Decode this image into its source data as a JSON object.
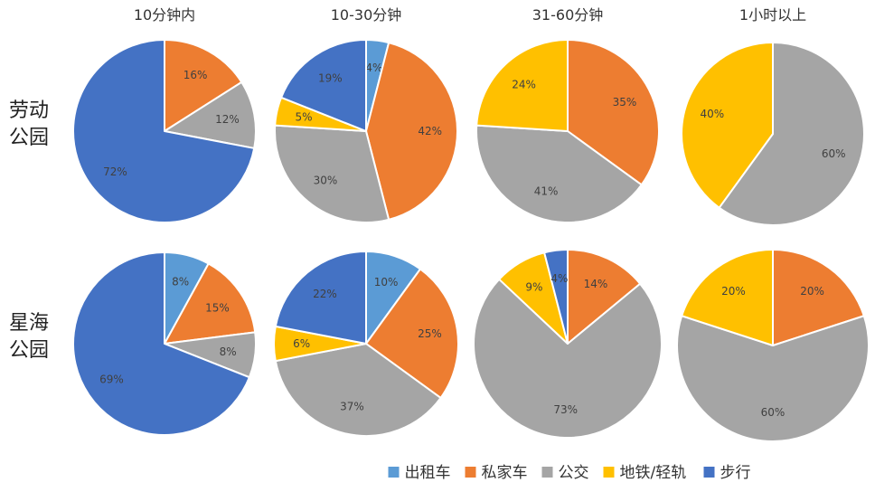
{
  "chart_data": {
    "type": "pie",
    "column_titles": [
      "10分钟内",
      "10-30分钟",
      "31-60分钟",
      "1小时以上"
    ],
    "row_labels": [
      [
        "劳动",
        "公园"
      ],
      [
        "星海",
        "公园"
      ]
    ],
    "legend": [
      {
        "name": "出租车",
        "color": "#5b9bd5"
      },
      {
        "name": "私家车",
        "color": "#ed7d31"
      },
      {
        "name": "公交",
        "color": "#a5a5a5"
      },
      {
        "name": "地铁/轻轨",
        "color": "#ffc000"
      },
      {
        "name": "步行",
        "color": "#4472c4"
      }
    ],
    "legend_separator": "/",
    "charts": [
      {
        "row": "劳动公园",
        "column": "10分钟内",
        "slices": [
          0,
          16,
          12,
          0,
          72
        ]
      },
      {
        "row": "劳动公园",
        "column": "10-30分钟",
        "slices": [
          4,
          42,
          30,
          5,
          19
        ]
      },
      {
        "row": "劳动公园",
        "column": "31-60分钟",
        "slices": [
          0,
          35,
          41,
          24,
          0
        ]
      },
      {
        "row": "劳动公园",
        "column": "1小时以上",
        "slices": [
          0,
          0,
          60,
          40,
          0
        ]
      },
      {
        "row": "星海公园",
        "column": "10分钟内",
        "slices": [
          8,
          15,
          8,
          0,
          69
        ]
      },
      {
        "row": "星海公园",
        "column": "10-30分钟",
        "slices": [
          10,
          25,
          37,
          6,
          22
        ]
      },
      {
        "row": "星海公园",
        "column": "31-60分钟",
        "slices": [
          0,
          14,
          73,
          9,
          4
        ]
      },
      {
        "row": "星海公园",
        "column": "1小时以上",
        "slices": [
          0,
          20,
          60,
          20,
          0
        ]
      }
    ]
  }
}
